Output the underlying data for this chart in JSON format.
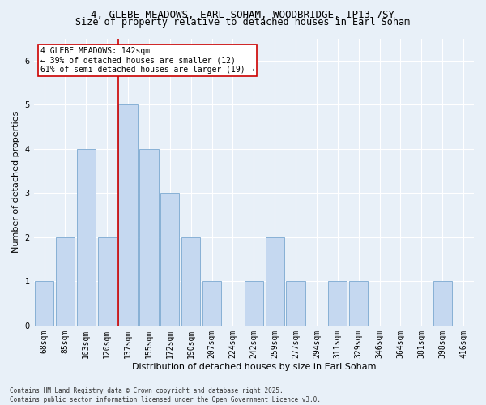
{
  "title_line1": "4, GLEBE MEADOWS, EARL SOHAM, WOODBRIDGE, IP13 7SY",
  "title_line2": "Size of property relative to detached houses in Earl Soham",
  "xlabel": "Distribution of detached houses by size in Earl Soham",
  "ylabel": "Number of detached properties",
  "categories": [
    "68sqm",
    "85sqm",
    "103sqm",
    "120sqm",
    "137sqm",
    "155sqm",
    "172sqm",
    "190sqm",
    "207sqm",
    "224sqm",
    "242sqm",
    "259sqm",
    "277sqm",
    "294sqm",
    "311sqm",
    "329sqm",
    "346sqm",
    "364sqm",
    "381sqm",
    "398sqm",
    "416sqm"
  ],
  "values": [
    1,
    2,
    4,
    2,
    5,
    4,
    3,
    2,
    1,
    0,
    1,
    2,
    1,
    0,
    1,
    1,
    0,
    0,
    0,
    1,
    0
  ],
  "bar_color": "#c5d8f0",
  "bar_edge_color": "#7aa8d0",
  "highlight_index": 4,
  "highlight_line_color": "#cc0000",
  "annotation_text": "4 GLEBE MEADOWS: 142sqm\n← 39% of detached houses are smaller (12)\n61% of semi-detached houses are larger (19) →",
  "annotation_box_color": "#ffffff",
  "annotation_box_edge": "#cc0000",
  "ylim": [
    0,
    6.5
  ],
  "yticks": [
    0,
    1,
    2,
    3,
    4,
    5,
    6
  ],
  "background_color": "#e8f0f8",
  "footer_text": "Contains HM Land Registry data © Crown copyright and database right 2025.\nContains public sector information licensed under the Open Government Licence v3.0.",
  "title_fontsize": 9,
  "subtitle_fontsize": 8.5,
  "axis_label_fontsize": 8,
  "tick_fontsize": 7,
  "annotation_fontsize": 7,
  "footer_fontsize": 5.5
}
